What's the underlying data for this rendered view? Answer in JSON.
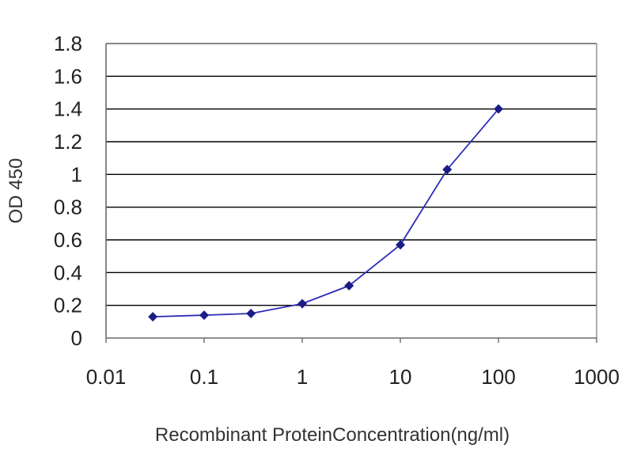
{
  "chart_data": {
    "type": "line",
    "title": "",
    "xlabel": "Recombinant ProteinConcentration(ng/ml)",
    "ylabel": "OD 450",
    "x_scale": "log",
    "xlim": [
      0.01,
      1000
    ],
    "ylim": [
      0,
      1.8
    ],
    "x_ticks": [
      "0.01",
      "0.1",
      "1",
      "10",
      "100",
      "1000"
    ],
    "y_ticks": [
      "0",
      "0.2",
      "0.4",
      "0.6",
      "0.8",
      "1",
      "1.2",
      "1.4",
      "1.6",
      "1.8"
    ],
    "grid": "horizontal",
    "series": [
      {
        "x": [
          0.03,
          0.1,
          0.3,
          1,
          3,
          10,
          30,
          100
        ],
        "y": [
          0.13,
          0.14,
          0.15,
          0.21,
          0.32,
          0.57,
          1.03,
          1.4
        ]
      }
    ],
    "colors": {
      "line": "#2b2bb8",
      "marker": "#1c1c86",
      "plot_background": "#ffffff",
      "gridline": "#000000"
    }
  }
}
